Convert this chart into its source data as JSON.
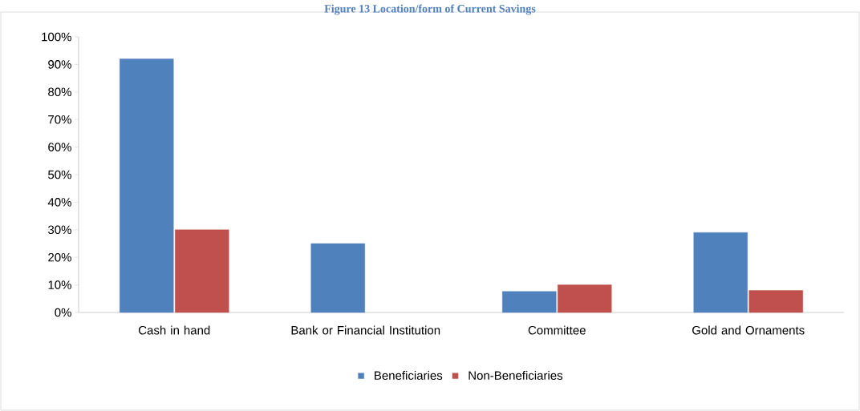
{
  "chart_data": {
    "type": "bar",
    "title": "Figure 13 Location/form of Current Savings",
    "categories": [
      "Cash in hand",
      "Bank or Financial Institution",
      "Committee",
      "Gold and Ornaments"
    ],
    "series": [
      {
        "name": "Beneficiaries",
        "color": "#4f81bd",
        "values": [
          92,
          25,
          7.6,
          29
        ]
      },
      {
        "name": "Non-Beneficiaries",
        "color": "#c0504d",
        "values": [
          30,
          null,
          10,
          8
        ]
      }
    ],
    "ylim": [
      0,
      100
    ],
    "yticks": [
      {
        "value": 0,
        "label": "0%"
      },
      {
        "value": 10,
        "label": "10%"
      },
      {
        "value": 20,
        "label": "20%"
      },
      {
        "value": 30,
        "label": "30%"
      },
      {
        "value": 40,
        "label": "40%"
      },
      {
        "value": 50,
        "label": "50%"
      },
      {
        "value": 60,
        "label": "60%"
      },
      {
        "value": 70,
        "label": "70%"
      },
      {
        "value": 80,
        "label": "80%"
      },
      {
        "value": 90,
        "label": "90%"
      },
      {
        "value": 100,
        "label": "100%"
      }
    ],
    "grid": false,
    "legend": "bottom"
  }
}
